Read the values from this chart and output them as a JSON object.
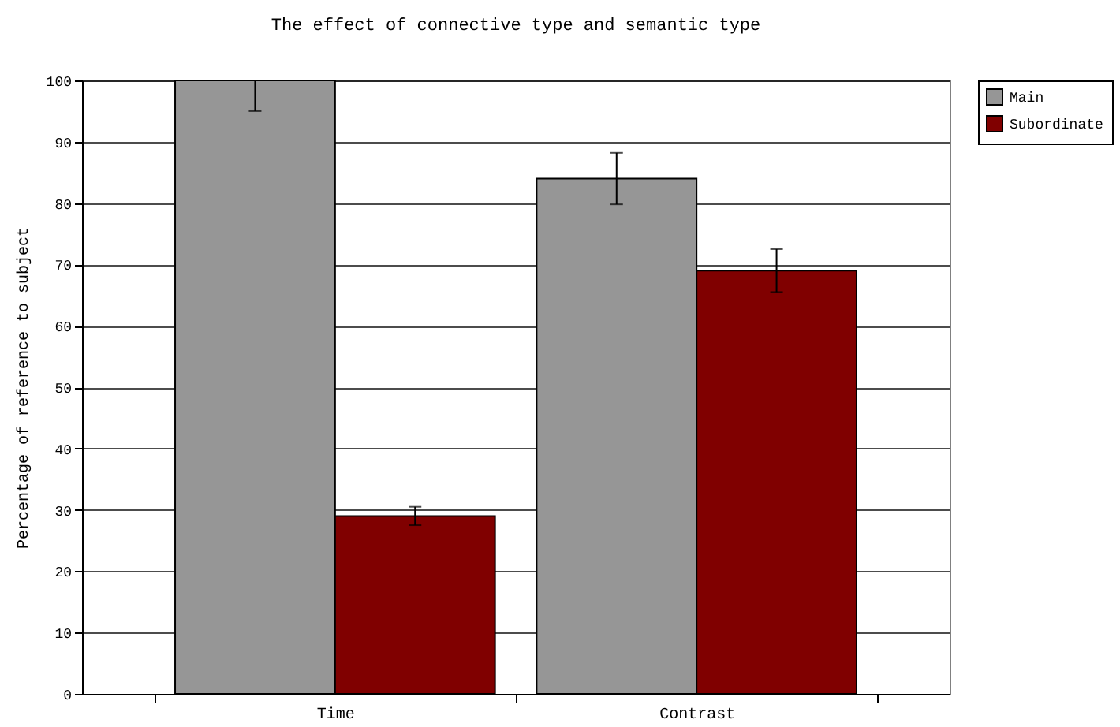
{
  "chart_data": {
    "type": "bar",
    "title": "The effect of connective type and semantic type",
    "ylabel": "Percentage of reference to subject",
    "categories": [
      "Time",
      "Contrast"
    ],
    "series": [
      {
        "name": "Main",
        "color": "#969696",
        "values": [
          100,
          84
        ],
        "errors": [
          [
            95,
            100
          ],
          4.2
        ]
      },
      {
        "name": "Subordinate",
        "color": "#800000",
        "values": [
          29,
          69
        ],
        "errors": [
          1.5,
          3.5
        ]
      }
    ],
    "ylim": [
      0,
      100
    ],
    "yticks": [
      0,
      10,
      20,
      30,
      40,
      50,
      60,
      70,
      80,
      90,
      100
    ],
    "grid": "y",
    "legend": "right"
  }
}
